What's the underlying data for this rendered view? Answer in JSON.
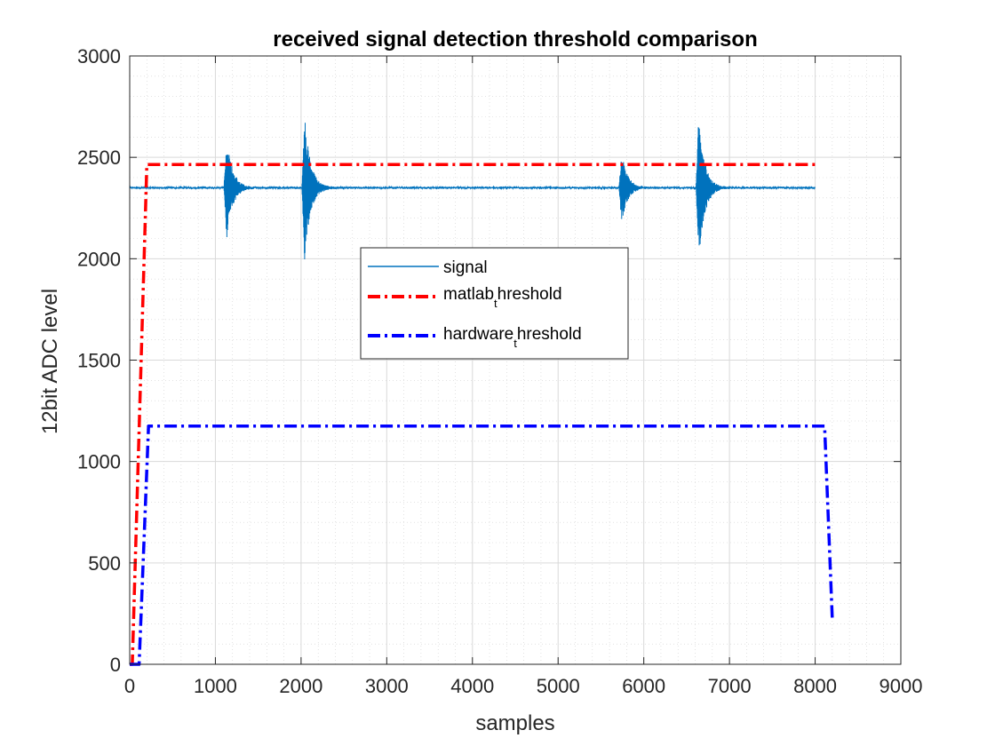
{
  "chart_data": {
    "type": "line",
    "title": "received signal detection threshold comparison",
    "xlabel": "samples",
    "ylabel": "12bit ADC level",
    "xlim": [
      0,
      9000
    ],
    "ylim": [
      0,
      3000
    ],
    "xticks": [
      0,
      1000,
      2000,
      3000,
      4000,
      5000,
      6000,
      7000,
      8000,
      9000
    ],
    "yticks": [
      0,
      500,
      1000,
      1500,
      2000,
      2500,
      3000
    ],
    "grid": true,
    "minor_grid": true,
    "legend_position": "center",
    "series": [
      {
        "name": "signal",
        "color": "#0072BD",
        "style": "solid",
        "baseline": 2350,
        "x_range": [
          0,
          8000
        ],
        "bursts": [
          {
            "center": 1130,
            "max": 2510,
            "min": 2090
          },
          {
            "center": 2040,
            "max": 2715,
            "min": 1995
          },
          {
            "center": 5740,
            "max": 2475,
            "min": 2170
          },
          {
            "center": 6640,
            "max": 2715,
            "min": 1995
          }
        ]
      },
      {
        "name": "matlab_threshold",
        "legend_main": "matlab",
        "legend_sub": "t",
        "legend_rest": "hreshold",
        "color": "#FF0000",
        "style": "dashdot",
        "x": [
          0,
          30,
          200,
          8000
        ],
        "y": [
          0,
          0,
          2465,
          2465
        ]
      },
      {
        "name": "hardware_threshold",
        "legend_main": "hardware",
        "legend_sub": "t",
        "legend_rest": "hreshold",
        "color": "#0000FF",
        "style": "dashdot",
        "x": [
          0,
          110,
          220,
          8110,
          8200
        ],
        "y": [
          0,
          0,
          1175,
          1175,
          230
        ]
      }
    ]
  }
}
